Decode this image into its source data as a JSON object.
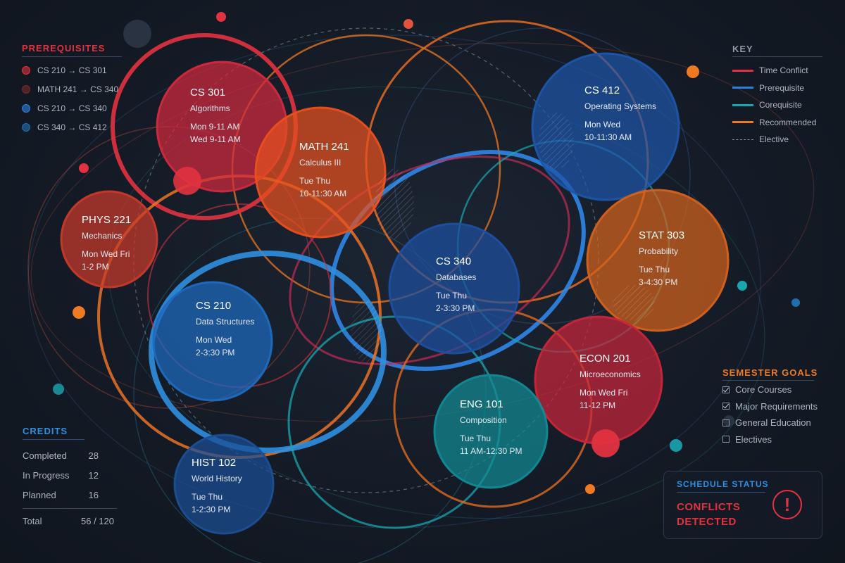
{
  "colors": {
    "time_conflict": "#e2323f",
    "prerequisite": "#2f7fe0",
    "corequisite": "#1aa6b0",
    "recommended": "#f07a22",
    "elective": "#8a96a8",
    "math241_dot": "#7a2a2a"
  },
  "prerequisites": {
    "title": "PREREQUISITES",
    "items": [
      {
        "label": "CS 210 → CS 301",
        "color": "#e2323f"
      },
      {
        "label": "MATH 241 → CS 340",
        "color": "#7a2a2a"
      },
      {
        "label": "CS 210 → CS 340",
        "color": "#2f7fe0"
      },
      {
        "label": "CS 340 → CS 412",
        "color": "#1f6fb0"
      }
    ]
  },
  "key": {
    "title": "KEY",
    "items": [
      {
        "label": "Time Conflict",
        "color": "#e2323f",
        "style": "solid"
      },
      {
        "label": "Prerequisite",
        "color": "#2f7fe0",
        "style": "solid"
      },
      {
        "label": "Corequisite",
        "color": "#1aa6b0",
        "style": "solid"
      },
      {
        "label": "Recommended",
        "color": "#f07a22",
        "style": "solid"
      },
      {
        "label": "Elective",
        "color": "#8a96a8",
        "style": "dashed"
      }
    ]
  },
  "credits": {
    "title": "CREDITS",
    "rows": [
      {
        "label": "Completed",
        "value": "28"
      },
      {
        "label": "In Progress",
        "value": "12"
      },
      {
        "label": "Planned",
        "value": "16"
      }
    ],
    "total_label": "Total",
    "total_value": "56 / 120"
  },
  "goals": {
    "title": "SEMESTER GOALS",
    "items": [
      {
        "label": "Core Courses",
        "checked": true
      },
      {
        "label": "Major Requirements",
        "checked": true
      },
      {
        "label": "General Education",
        "checked": false
      },
      {
        "label": "Electives",
        "checked": false
      }
    ]
  },
  "status": {
    "title": "SCHEDULE STATUS",
    "line1": "CONFLICTS",
    "line2": "DETECTED",
    "icon": "alert-icon"
  },
  "courses": [
    {
      "code": "CS 301",
      "name": "Algorithms",
      "time1": "Mon 9-11 AM",
      "time2": "Wed 9-11 AM",
      "color": "#d02a3e",
      "kind": "conflict"
    },
    {
      "code": "MATH 241",
      "name": "Calculus III",
      "time1": "Tue Thu",
      "time2": "10-11:30 AM",
      "color": "#e8501f",
      "kind": "recommended"
    },
    {
      "code": "CS 412",
      "name": "Operating Systems",
      "time1": "Mon Wed",
      "time2": "10-11:30 AM",
      "color": "#1e55a8",
      "kind": "prerequisite"
    },
    {
      "code": "PHYS 221",
      "name": "Mechanics",
      "time1": "Mon Wed Fri",
      "time2": "1-2 PM",
      "color": "#c73a2a",
      "kind": "conflict"
    },
    {
      "code": "STAT 303",
      "name": "Probability",
      "time1": "Tue Thu",
      "time2": "3-4:30 PM",
      "color": "#d4621c",
      "kind": "recommended"
    },
    {
      "code": "CS 340",
      "name": "Databases",
      "time1": "Tue Thu",
      "time2": "2-3:30 PM",
      "color": "#1d4fa0",
      "kind": "prerequisite"
    },
    {
      "code": "CS 210",
      "name": "Data Structures",
      "time1": "Mon Wed",
      "time2": "2-3:30 PM",
      "color": "#1e6bbf",
      "kind": "prerequisite"
    },
    {
      "code": "ECON 201",
      "name": "Microeconomics",
      "time1": "Mon Wed Fri",
      "time2": "11-12 PM",
      "color": "#c7263a",
      "kind": "conflict"
    },
    {
      "code": "ENG 101",
      "name": "Composition",
      "time1": "Tue Thu",
      "time2": "11 AM-12:30 PM",
      "color": "#128a93",
      "kind": "corequisite"
    },
    {
      "code": "HIST 102",
      "name": "World History",
      "time1": "Tue Thu",
      "time2": "1-2:30 PM",
      "color": "#1b4f95",
      "kind": "prerequisite"
    }
  ]
}
